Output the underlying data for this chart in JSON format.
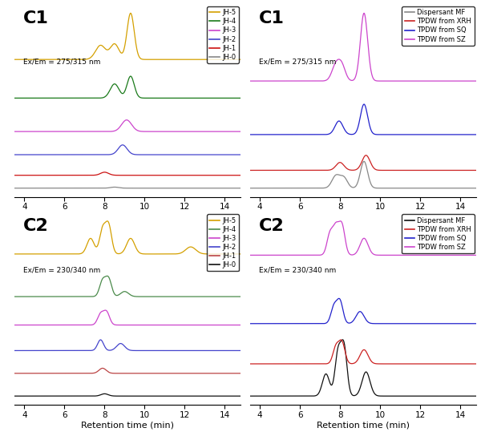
{
  "panel_labels": [
    "C1",
    "C1",
    "C2",
    "C2"
  ],
  "excitation_labels": [
    "Ex/Em = 275/315 nm",
    "Ex/Em = 275/315 nm",
    "Ex/Em = 230/340 nm",
    "Ex/Em = 230/340 nm"
  ],
  "xlim": [
    3.5,
    14.8
  ],
  "xlabel": "Retention time (min)",
  "xticks": [
    4,
    6,
    8,
    10,
    12,
    14
  ],
  "left_legend_labels": [
    "JH-5",
    "JH-4",
    "JH-3",
    "JH-2",
    "JH-1",
    "JH-0"
  ],
  "left_legend_colors_C1": [
    "#d4a000",
    "#1a7a1a",
    "#cc44cc",
    "#4444cc",
    "#cc1111",
    "#888888"
  ],
  "left_legend_colors_C2": [
    "#d4a000",
    "#4a8a4a",
    "#cc44cc",
    "#4444cc",
    "#bb4444",
    "#111111"
  ],
  "right_legend_labels": [
    "Dispersant MF",
    "TPDW from XRH",
    "TPDW from SQ",
    "TPDW from SZ"
  ],
  "right_legend_colors_C1": [
    "#888888",
    "#cc2222",
    "#2222cc",
    "#cc44cc"
  ],
  "right_legend_colors_C2": [
    "#111111",
    "#cc2222",
    "#2222cc",
    "#cc44cc"
  ],
  "bg_color": "#f0f0f0"
}
